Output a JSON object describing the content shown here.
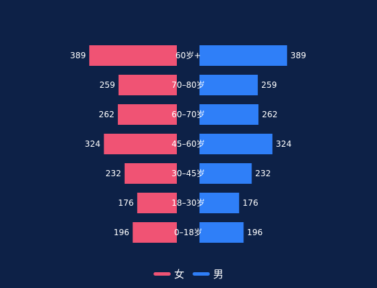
{
  "chart_data": {
    "type": "bar",
    "orientation": "horizontal-butterfly",
    "categories": [
      "60岁+",
      "70–80岁",
      "60–70岁",
      "45–60岁",
      "30–45岁",
      "18–30岁",
      "0–18岁"
    ],
    "series": [
      {
        "name": "女",
        "side": "left",
        "color": "#f05374",
        "values": [
          389,
          259,
          262,
          324,
          232,
          176,
          196
        ]
      },
      {
        "name": "男",
        "side": "right",
        "color": "#2f7ff8",
        "values": [
          389,
          259,
          262,
          324,
          232,
          176,
          196
        ]
      }
    ],
    "xlim": [
      0,
      400
    ],
    "grid": false,
    "legend_position": "bottom-center",
    "show_value_labels": true
  }
}
